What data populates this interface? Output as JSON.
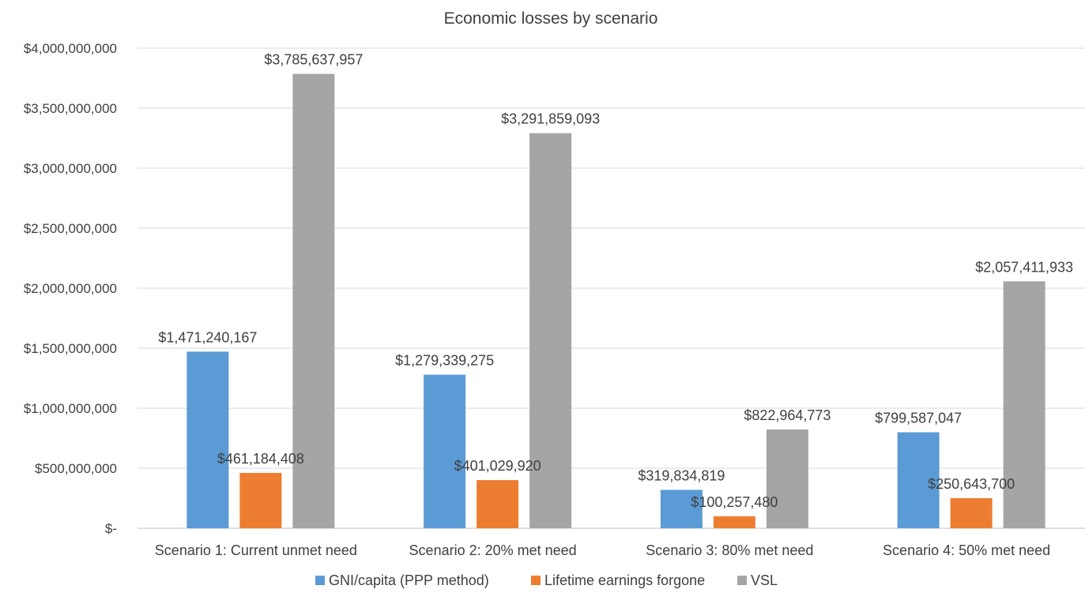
{
  "chart_data": {
    "type": "bar",
    "title": "Economic losses by scenario",
    "xlabel": "",
    "ylabel": "",
    "ylim": [
      0,
      4000000000
    ],
    "yticks": [
      0,
      500000000,
      1000000000,
      1500000000,
      2000000000,
      2500000000,
      3000000000,
      3500000000,
      4000000000
    ],
    "ytick_labels": [
      "$-",
      "$500,000,000",
      "$1,000,000,000",
      "$1,500,000,000",
      "$2,000,000,000",
      "$2,500,000,000",
      "$3,000,000,000",
      "$3,500,000,000",
      "$4,000,000,000"
    ],
    "categories": [
      "Scenario 1: Current unmet need",
      "Scenario 2: 20% met need",
      "Scenario 3: 80% met need",
      "Scenario 4: 50% met need"
    ],
    "series": [
      {
        "name": "GNI/capita (PPP method)",
        "color": "#5b9bd5",
        "values": [
          1471240167,
          1279339275,
          319834819,
          799587047
        ],
        "labels": [
          "$1,471,240,167",
          "$1,279,339,275",
          "$319,834,819",
          "$799,587,047"
        ]
      },
      {
        "name": "Lifetime earnings forgone",
        "color": "#ed7d31",
        "values": [
          461184408,
          401029920,
          100257480,
          250643700
        ],
        "labels": [
          "$461,184,408",
          "$401,029,920",
          "$100,257,480",
          "$250,643,700"
        ]
      },
      {
        "name": "VSL",
        "color": "#a5a5a5",
        "values": [
          3785637957,
          3291859093,
          822964773,
          2057411933
        ],
        "labels": [
          "$3,785,637,957",
          "$3,291,859,093",
          "$822,964,773",
          "$2,057,411,933"
        ]
      }
    ],
    "grid": true,
    "legend": "bottom"
  }
}
